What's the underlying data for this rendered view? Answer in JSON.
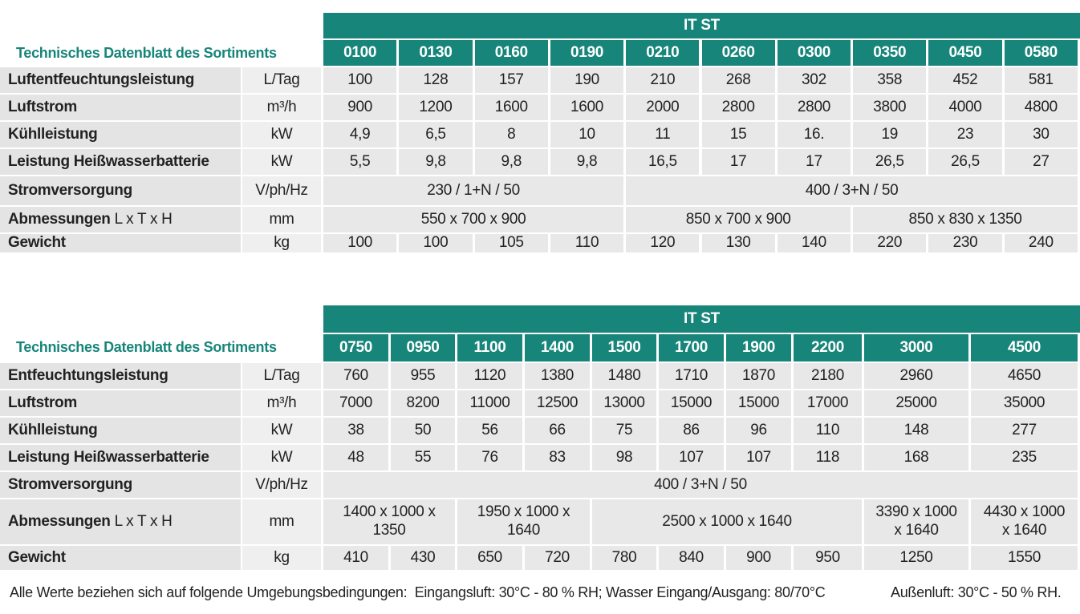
{
  "tables": [
    {
      "title": "Technisches Datenblatt des Sortiments",
      "group": "IT   ST",
      "models": [
        "0100",
        "0130",
        "0160",
        "0190",
        "0210",
        "0260",
        "0300",
        "0350",
        "0450",
        "0580"
      ],
      "rows": [
        {
          "label": "Luftentfeuchtungsleistung",
          "unit": "L/Tag",
          "values": [
            "100",
            "128",
            "157",
            "190",
            "210",
            "268",
            "302",
            "358",
            "452",
            "581"
          ]
        },
        {
          "label": "Luftstrom",
          "unit": "m³/h",
          "values": [
            "900",
            "1200",
            "1600",
            "1600",
            "2000",
            "2800",
            "2800",
            "3800",
            "4000",
            "4800"
          ]
        },
        {
          "label": "Kühlleistung",
          "unit": "kW",
          "values": [
            "4,9",
            "6,5",
            "8",
            "10",
            "11",
            "15",
            "16.",
            "19",
            "23",
            "30"
          ]
        },
        {
          "label": "Leistung Heißwasserbatterie",
          "unit": "kW",
          "values": [
            "5,5",
            "9,8",
            "9,8",
            "9,8",
            "16,5",
            "17",
            "17",
            "26,5",
            "26,5",
            "27"
          ]
        },
        {
          "label": "Stromversorgung",
          "unit": "V/ph/Hz",
          "values": [
            "230 / 1+N / 50",
            "400 / 3+N / 50"
          ]
        },
        {
          "label": "Abmessungen",
          "label_note": "L x T x H",
          "unit": "mm",
          "values": [
            "550 x 700 x 900",
            "850 x 700 x 900",
            "850 x 830 x 1350"
          ]
        },
        {
          "label": "Gewicht",
          "unit": "kg",
          "values": [
            "100",
            "100",
            "105",
            "110",
            "120",
            "130",
            "140",
            "220",
            "230",
            "240"
          ]
        }
      ]
    },
    {
      "title": "Technisches Datenblatt des Sortiments",
      "group": "IT   ST",
      "models": [
        "0750",
        "0950",
        "1100",
        "1400",
        "1500",
        "1700",
        "1900",
        "2200",
        "3000",
        "4500"
      ],
      "rows": [
        {
          "label": "Entfeuchtungsleistung",
          "unit": "L/Tag",
          "values": [
            "760",
            "955",
            "1120",
            "1380",
            "1480",
            "1710",
            "1870",
            "2180",
            "2960",
            "4650"
          ]
        },
        {
          "label": "Luftstrom",
          "unit": "m³/h",
          "values": [
            "7000",
            "8200",
            "11000",
            "12500",
            "13000",
            "15000",
            "15000",
            "17000",
            "25000",
            "35000"
          ]
        },
        {
          "label": "Kühlleistung",
          "unit": "kW",
          "values": [
            "38",
            "50",
            "56",
            "66",
            "75",
            "86",
            "96",
            "110",
            "148",
            "277"
          ]
        },
        {
          "label": "Leistung Heißwasserbatterie",
          "unit": "kW",
          "values": [
            "48",
            "55",
            "76",
            "83",
            "98",
            "107",
            "107",
            "118",
            "168",
            "235"
          ]
        },
        {
          "label": "Stromversorgung",
          "unit": "V/ph/Hz",
          "values": [
            "400 / 3+N / 50"
          ]
        },
        {
          "label": "Abmessungen",
          "label_note": "L x T x H",
          "unit": "mm",
          "values": [
            "1400 x 1000 x 1350",
            "1950 x 1000 x 1640",
            "2500 x 1000 x 1640",
            "3390 x 1000 x 1640",
            "4430 x 1000 x 1640"
          ]
        },
        {
          "label": "Gewicht",
          "unit": "kg",
          "values": [
            "410",
            "430",
            "650",
            "720",
            "780",
            "840",
            "900",
            "950",
            "1250",
            "1550"
          ]
        }
      ]
    }
  ],
  "footer": [
    "Alle Werte beziehen sich auf folgende Umgebungsbedingungen:  Eingangsluft: 30°C - 80 % RH; Wasser Eingang/Ausgang: 80/70°C",
    "Außenluft: 30°C - 50 % RH."
  ]
}
